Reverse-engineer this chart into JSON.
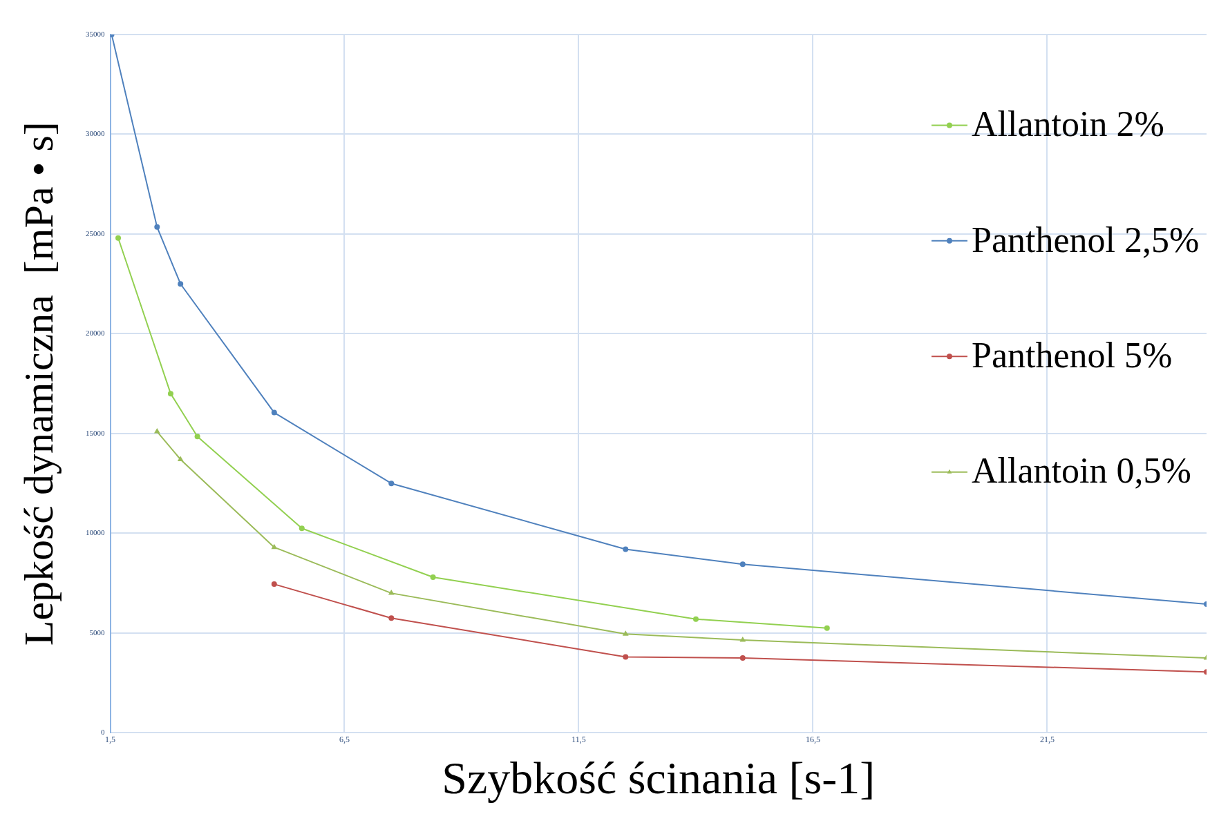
{
  "chart_data": {
    "type": "line",
    "xlabel": "Szybkość ścinania [s-1]",
    "ylabel": "Lepkość dynamiczna  [mPa • s]",
    "xlim": [
      1.5,
      24.9
    ],
    "xticks": [
      {
        "value": 1.5,
        "label": "1,5"
      },
      {
        "value": 6.5,
        "label": "6,5"
      },
      {
        "value": 11.5,
        "label": "11,5"
      },
      {
        "value": 16.5,
        "label": "16,5"
      },
      {
        "value": 21.5,
        "label": "21,5"
      }
    ],
    "ylim": [
      0,
      35000
    ],
    "yticks": [
      0,
      5000,
      10000,
      15000,
      20000,
      25000,
      30000,
      35000
    ],
    "grid": true,
    "legend": "right",
    "marker": "circle",
    "line_style": "solid",
    "series": [
      {
        "name": "Allantoin 2%",
        "color": "#92d050",
        "x": [
          1.67,
          2.79,
          3.36,
          5.59,
          8.39,
          14,
          16.8
        ],
        "values": [
          24800,
          17000,
          14850,
          10250,
          7800,
          5700,
          5250
        ]
      },
      {
        "name": "Panthenol 2,5%",
        "color": "#4f81bd",
        "x": [
          1.53,
          2.5,
          3,
          5,
          7.5,
          12.5,
          15,
          24.9
        ],
        "values": [
          35000,
          25350,
          22500,
          16050,
          12500,
          9200,
          8450,
          6450
        ]
      },
      {
        "name": "Panthenol 5%",
        "color": "#c0504d",
        "x": [
          5,
          7.5,
          12.5,
          15,
          24.9
        ],
        "values": [
          7450,
          5750,
          3800,
          3750,
          3050
        ]
      },
      {
        "name": "Allantoin 0,5%",
        "color": "#9bbb59",
        "marker": "triangle",
        "x": [
          2.5,
          3,
          5,
          7.5,
          12.5,
          15,
          24.9
        ],
        "values": [
          15100,
          13700,
          9300,
          7000,
          4950,
          4650,
          3750
        ]
      }
    ]
  }
}
